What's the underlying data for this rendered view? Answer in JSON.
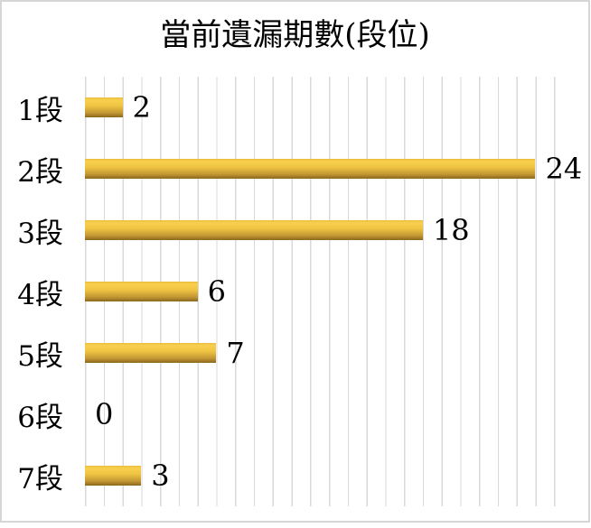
{
  "chart_data": {
    "type": "bar",
    "orientation": "horizontal",
    "title": "當前遺漏期數(段位)",
    "categories": [
      "1段",
      "2段",
      "3段",
      "4段",
      "5段",
      "6段",
      "7段"
    ],
    "values": [
      2,
      24,
      18,
      6,
      7,
      0,
      3
    ],
    "xlabel": "",
    "ylabel": "",
    "xlim": [
      0,
      26
    ],
    "x_major_unit": 1,
    "grid": "vertical-major-only",
    "legend": "none",
    "data_labels_shown": true,
    "colors": {
      "bar_gradient_top": "#E9BC3B",
      "bar_gradient_light": "#F8D04E",
      "bar_gradient_mid": "#EFC443",
      "bar_gradient_dark": "#C29632",
      "bar_gradient_bottom": "#8A671F",
      "gridline": "#D9D9D9",
      "chart_border": "#D6D6D6",
      "text": "#000000",
      "background": "#FFFFFF"
    }
  }
}
